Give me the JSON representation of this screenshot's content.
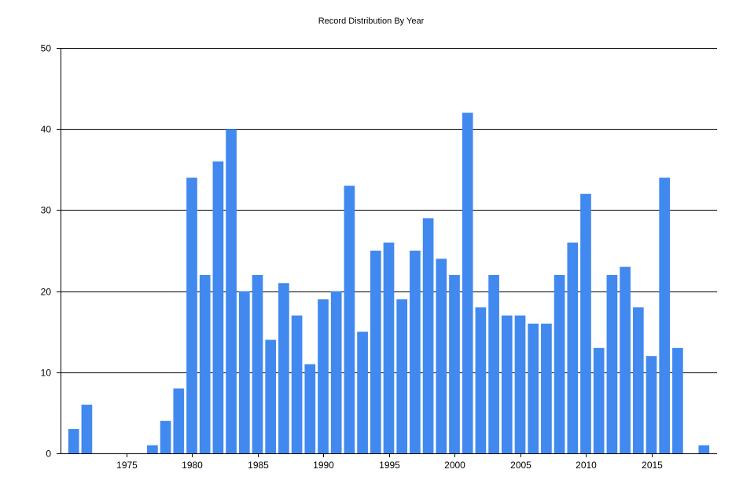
{
  "chart_data": {
    "type": "bar",
    "title": "Record Distribution By Year",
    "xlabel": "",
    "ylabel": "",
    "x": [
      1971,
      1972,
      1977,
      1978,
      1979,
      1980,
      1981,
      1982,
      1983,
      1984,
      1985,
      1986,
      1987,
      1988,
      1989,
      1990,
      1991,
      1992,
      1993,
      1994,
      1995,
      1996,
      1997,
      1998,
      1999,
      2000,
      2001,
      2002,
      2003,
      2004,
      2005,
      2006,
      2007,
      2008,
      2009,
      2010,
      2011,
      2012,
      2013,
      2014,
      2015,
      2016,
      2017,
      2019
    ],
    "values": [
      3,
      6,
      1,
      4,
      8,
      34,
      22,
      36,
      40,
      20,
      22,
      14,
      21,
      17,
      11,
      19,
      20,
      33,
      15,
      25,
      26,
      19,
      25,
      29,
      24,
      22,
      42,
      18,
      22,
      17,
      17,
      16,
      16,
      22,
      26,
      32,
      13,
      22,
      23,
      18,
      12,
      34,
      13,
      1
    ],
    "xlim": [
      1970,
      2020
    ],
    "ylim": [
      0,
      50
    ],
    "x_ticks": [
      1975,
      1980,
      1985,
      1990,
      1995,
      2000,
      2005,
      2010,
      2015
    ],
    "y_ticks": [
      0,
      10,
      20,
      30,
      40,
      50
    ],
    "bar_color": "#4189EF",
    "grid": "horizontal",
    "legend": "none"
  }
}
